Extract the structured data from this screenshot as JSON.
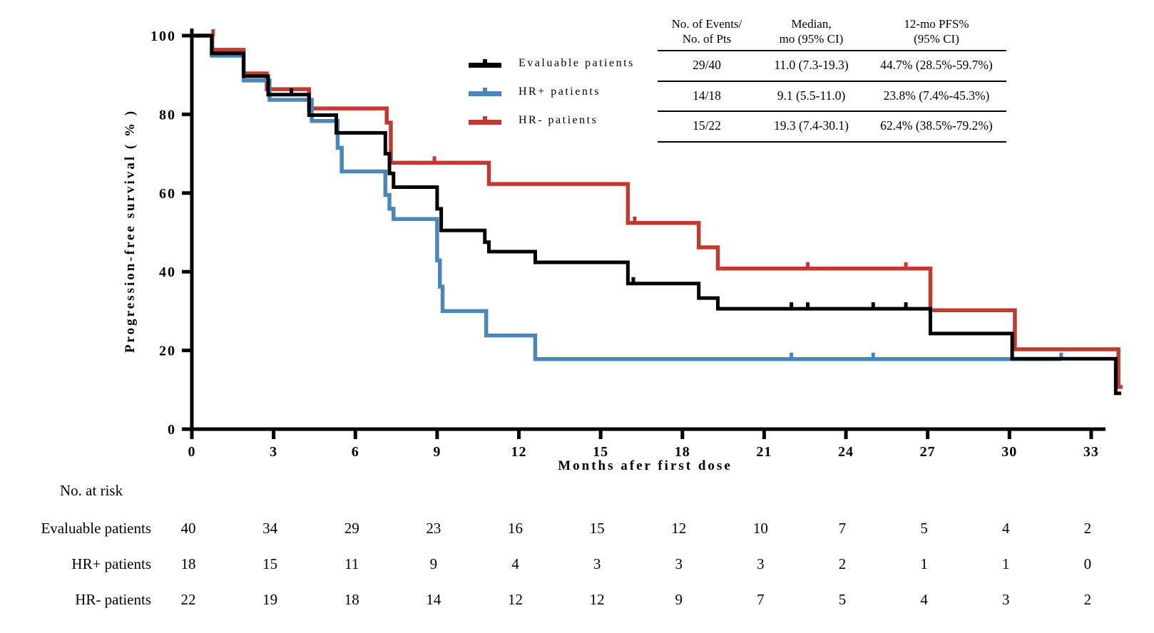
{
  "figure": {
    "y_axis_label": "Progression-free survival ( % )",
    "x_axis_label": "Months afer first dose",
    "background": "#ffffff",
    "axis_color": "#000000"
  },
  "legend": {
    "items": [
      {
        "id": "evaluable",
        "label": "Evaluable patients",
        "color": "#000000"
      },
      {
        "id": "hr-positive",
        "label": "HR+ patients",
        "color": "#4A87B8"
      },
      {
        "id": "hr-negative",
        "label": "HR- patients",
        "color": "#C03A30"
      }
    ]
  },
  "stats_table": {
    "headers": [
      "No. of Events/\nNo. of Pts",
      "Median,\nmo (95% CI)",
      "12-mo PFS%\n(95% CI)"
    ],
    "rows": [
      [
        "29/40",
        "11.0 (7.3-19.3)",
        "44.7% (28.5%-59.7%)"
      ],
      [
        "14/18",
        "9.1 (5.5-11.0)",
        "23.8% (7.4%-45.3%)"
      ],
      [
        "15/22",
        "19.3 (7.4-30.1)",
        "62.4% (38.5%-79.2%)"
      ]
    ]
  },
  "risk_table": {
    "title": "No. at risk",
    "timepoints": [
      0,
      3,
      6,
      9,
      12,
      15,
      18,
      21,
      24,
      27,
      30,
      33
    ],
    "rows": [
      {
        "label": "Evaluable patients",
        "counts": [
          40,
          34,
          29,
          23,
          16,
          15,
          12,
          10,
          7,
          5,
          4,
          2
        ]
      },
      {
        "label": "HR+ patients",
        "counts": [
          18,
          15,
          11,
          9,
          4,
          3,
          3,
          3,
          2,
          1,
          1,
          0
        ]
      },
      {
        "label": "HR- patients",
        "counts": [
          22,
          19,
          18,
          14,
          12,
          12,
          9,
          7,
          5,
          4,
          3,
          2
        ]
      }
    ]
  },
  "chart_data": {
    "type": "line",
    "subtype": "kaplan-meier-step",
    "title": "",
    "xlabel": "Months afer first dose",
    "ylabel": "Progression-free survival ( % )",
    "xlim": [
      0,
      35
    ],
    "ylim": [
      0,
      100
    ],
    "xticks": [
      0,
      3,
      6,
      9,
      12,
      15,
      18,
      21,
      24,
      27,
      30,
      33
    ],
    "yticks": [
      0,
      20,
      40,
      60,
      80,
      100
    ],
    "grid": false,
    "legend_position": "upper-center-left",
    "series": [
      {
        "id": "evaluable",
        "name": "Evaluable patients",
        "color": "#000000",
        "steps": [
          [
            0,
            100
          ],
          [
            0.73,
            95.5
          ],
          [
            1.9,
            89.7
          ],
          [
            2.8,
            85.0
          ],
          [
            4.3,
            79.8
          ],
          [
            5.3,
            75.3
          ],
          [
            7.1,
            70.0
          ],
          [
            7.25,
            65.0
          ],
          [
            7.4,
            61.5
          ],
          [
            9.0,
            56.0
          ],
          [
            9.15,
            50.5
          ],
          [
            10.75,
            47.5
          ],
          [
            10.9,
            45.1
          ],
          [
            12.6,
            42.4
          ],
          [
            16.0,
            37.0
          ],
          [
            18.6,
            33.3
          ],
          [
            19.3,
            30.6
          ],
          [
            27.1,
            24.3
          ],
          [
            30.1,
            17.9
          ],
          [
            33.9,
            9.1
          ]
        ],
        "end_time": 34.1,
        "censor_ticks": [
          [
            3.65,
            85.0
          ],
          [
            16.2,
            37.0
          ],
          [
            22.0,
            30.6
          ],
          [
            22.6,
            30.6
          ],
          [
            25.0,
            30.6
          ],
          [
            26.2,
            30.6
          ]
        ]
      },
      {
        "id": "hr-positive",
        "name": "HR+ patients",
        "color": "#4A87B8",
        "steps": [
          [
            0,
            100
          ],
          [
            0.73,
            94.9
          ],
          [
            1.9,
            88.6
          ],
          [
            2.85,
            83.7
          ],
          [
            4.4,
            78.3
          ],
          [
            5.35,
            71.5
          ],
          [
            5.5,
            65.5
          ],
          [
            7.1,
            59.5
          ],
          [
            7.25,
            56.0
          ],
          [
            7.4,
            53.4
          ],
          [
            9.0,
            42.9
          ],
          [
            9.1,
            36.2
          ],
          [
            9.2,
            30.0
          ],
          [
            10.8,
            23.8
          ],
          [
            12.6,
            17.8
          ]
        ],
        "end_time": 31.9,
        "censor_ticks": [
          [
            22.0,
            17.8
          ],
          [
            25.0,
            17.8
          ],
          [
            31.9,
            17.8
          ]
        ]
      },
      {
        "id": "hr-negative",
        "name": "HR- patients",
        "color": "#C03A30",
        "steps": [
          [
            0,
            100
          ],
          [
            0.75,
            96.4
          ],
          [
            1.9,
            90.4
          ],
          [
            2.75,
            86.4
          ],
          [
            4.3,
            81.5
          ],
          [
            7.15,
            77.9
          ],
          [
            7.3,
            67.7
          ],
          [
            10.9,
            62.3
          ],
          [
            16.0,
            52.4
          ],
          [
            18.6,
            46.2
          ],
          [
            19.3,
            40.8
          ],
          [
            27.1,
            30.2
          ],
          [
            30.2,
            20.3
          ],
          [
            34.0,
            10.7
          ]
        ],
        "end_time": 34.15,
        "censor_ticks": [
          [
            0.78,
            100
          ],
          [
            8.9,
            67.7
          ],
          [
            16.25,
            52.4
          ],
          [
            22.6,
            40.8
          ],
          [
            26.2,
            40.8
          ]
        ]
      }
    ]
  }
}
